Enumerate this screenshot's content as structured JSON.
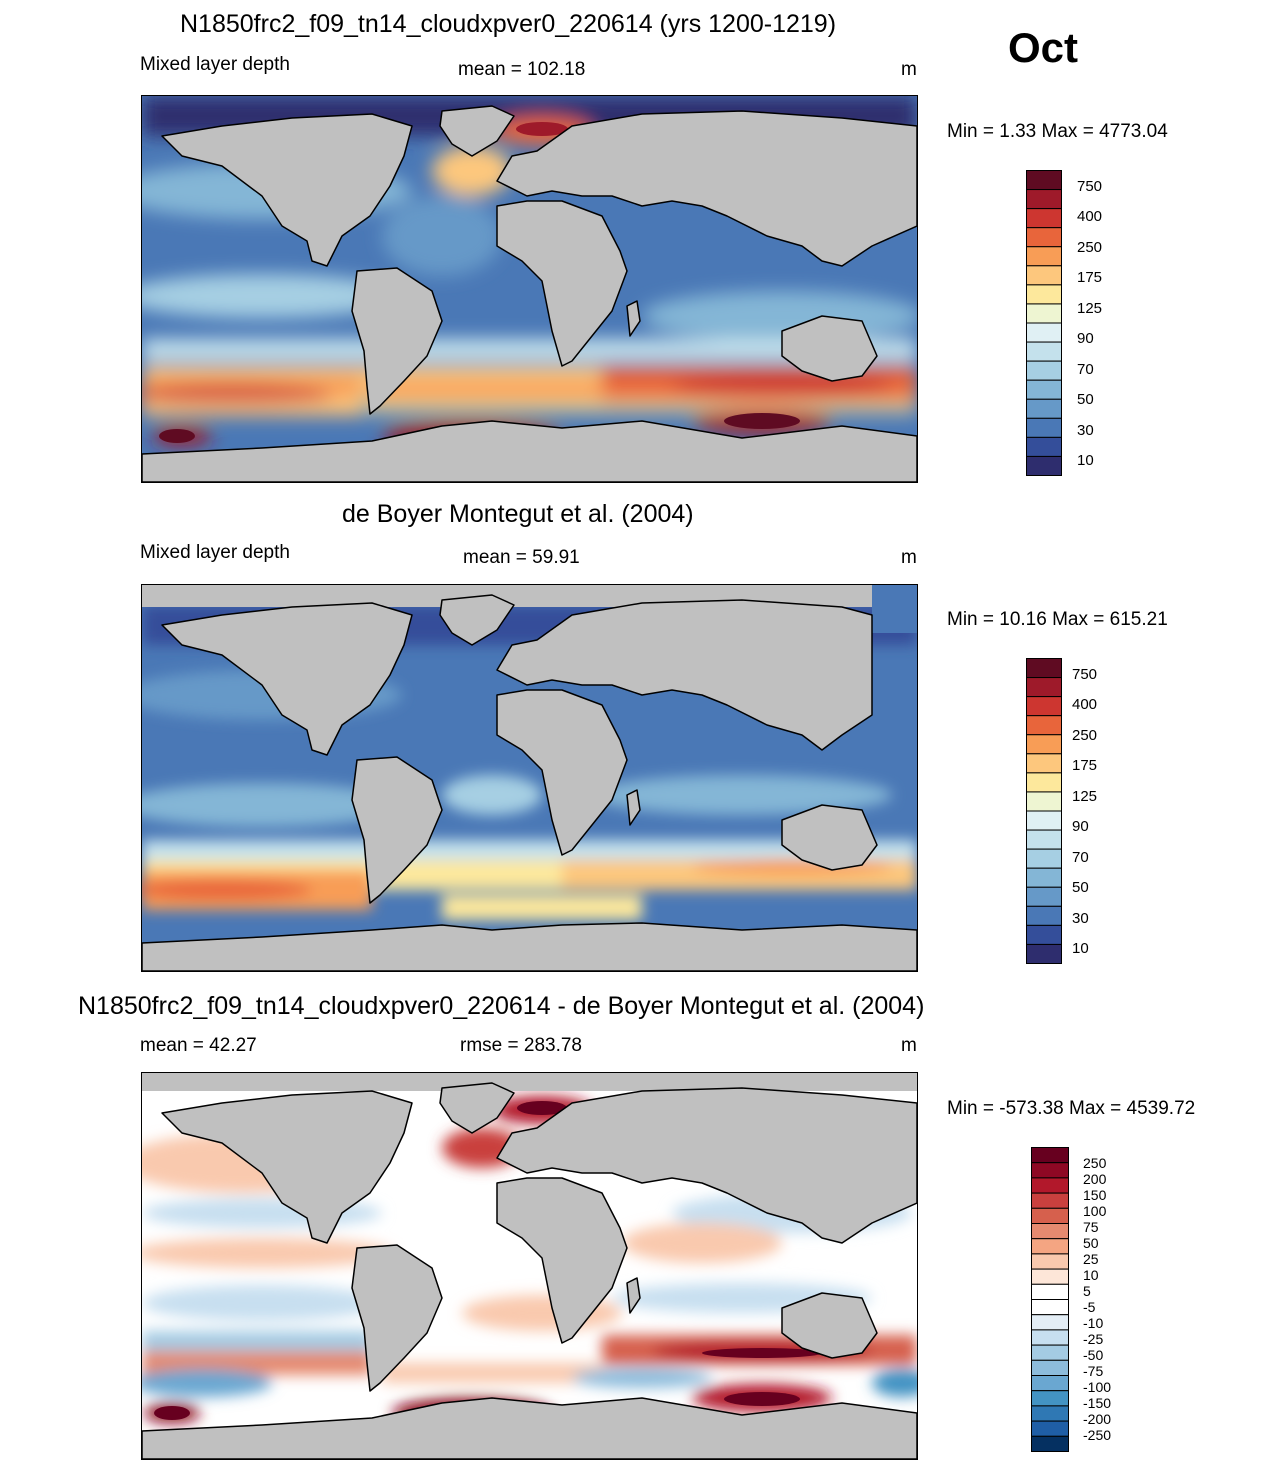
{
  "month": "Oct",
  "panels": [
    {
      "title": "N1850frc2_f09_tn14_cloudxpver0_220614 (yrs 1200-1219)",
      "left_label": "Mixed layer depth",
      "center_label": "mean = 102.18",
      "units": "m",
      "minmax": "Min =   1.33 Max = 4773.04",
      "colorbar_labels": [
        "750",
        "400",
        "250",
        "175",
        "125",
        "90",
        "70",
        "50",
        "30",
        "10"
      ]
    },
    {
      "title": "de Boyer Montegut et al. (2004)",
      "left_label": "Mixed layer depth",
      "center_label": "mean =  59.91",
      "units": "m",
      "minmax": "Min =  10.16 Max = 615.21",
      "colorbar_labels": [
        "750",
        "400",
        "250",
        "175",
        "125",
        "90",
        "70",
        "50",
        "30",
        "10"
      ]
    },
    {
      "title": "N1850frc2_f09_tn14_cloudxpver0_220614 - de Boyer Montegut et al. (2004)",
      "left_label": "mean =  42.27",
      "center_label": "rmse = 283.78",
      "units": "m",
      "minmax": "Min = -573.38 Max = 4539.72",
      "colorbar_labels": [
        "250",
        "200",
        "150",
        "100",
        "75",
        "50",
        "25",
        "10",
        "5",
        "-5",
        "-10",
        "-25",
        "-50",
        "-75",
        "-100",
        "-150",
        "-200",
        "-250"
      ]
    }
  ],
  "colors": {
    "land": "#c0c0c0",
    "seq_palette": [
      "#5f0b22",
      "#9e1a2a",
      "#cd3630",
      "#e8653b",
      "#f89d56",
      "#fdc77d",
      "#fde89c",
      "#eef5d2",
      "#e0f0f4",
      "#c4e1ec",
      "#a6cfe3",
      "#84b6d6",
      "#6699c8",
      "#4a78b6",
      "#344e9a",
      "#2e2d6e"
    ],
    "div_palette": [
      "#67001f",
      "#8e0824",
      "#b2182b",
      "#c9403e",
      "#d6604d",
      "#e58a70",
      "#f4a582",
      "#f9c9ae",
      "#fde6d8",
      "#ffffff",
      "#ffffff",
      "#e4eef6",
      "#c7dff0",
      "#a4cbe3",
      "#8dbcdc",
      "#6aa7d1",
      "#4393c3",
      "#2f78b4",
      "#1f5ea6",
      "#053061"
    ]
  }
}
